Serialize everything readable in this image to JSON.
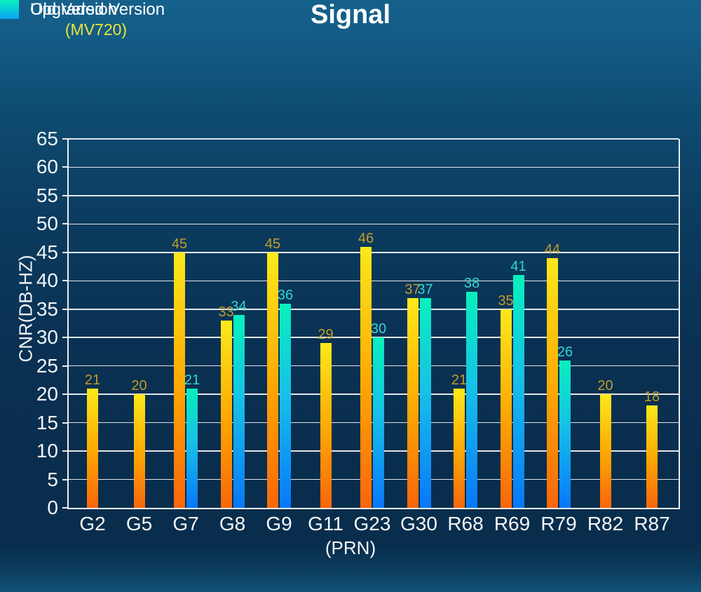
{
  "title": "Signal",
  "legend": {
    "upgraded_label": "Upgraded Version",
    "upgraded_sublabel": "(MV720)",
    "old_label": "Old Version"
  },
  "axes": {
    "y_title": "CNR(DB-HZ)",
    "x_title": "(PRN)"
  },
  "colors": {
    "background_top": "#15618b",
    "background_middle": "#092d4c",
    "background_bottom": "#125178",
    "title_text": "#ffffff",
    "legend_text": "#ffffff",
    "mv720_text": "#ece43a",
    "axis_text": "#f2f6f9",
    "grid_line": "#ffffff",
    "upgraded_bar_top": "#fce91b",
    "upgraded_bar_mid": "#fdab03",
    "upgraded_bar_bottom": "#f9660a",
    "upgraded_swatch_bottom": "#fd8403",
    "old_bar_top": "#07f0bd",
    "old_bar_mid": "#17c0e8",
    "old_bar_bottom": "#0877fb",
    "old_swatch_bottom": "#0aa4f4",
    "upgraded_value_text": "#c29b2b",
    "old_value_text": "#31d7d2"
  },
  "chart_data": {
    "type": "bar",
    "title": "Signal",
    "xlabel": "(PRN)",
    "ylabel": "CNR(DB-HZ)",
    "ylim": [
      0,
      65
    ],
    "ytick_step": 5,
    "grid": true,
    "legend_position": "top-left",
    "categories": [
      "G2",
      "G5",
      "G7",
      "G8",
      "G9",
      "G11",
      "G23",
      "G30",
      "R68",
      "R69",
      "R79",
      "R82",
      "R87"
    ],
    "series": [
      {
        "name": "Upgraded Version (MV720)",
        "values": [
          21,
          20,
          45,
          33,
          45,
          29,
          46,
          37,
          21,
          35,
          44,
          20,
          18
        ]
      },
      {
        "name": "Old Version",
        "values": [
          null,
          null,
          21,
          34,
          36,
          null,
          30,
          37,
          38,
          41,
          26,
          null,
          null
        ]
      }
    ]
  }
}
